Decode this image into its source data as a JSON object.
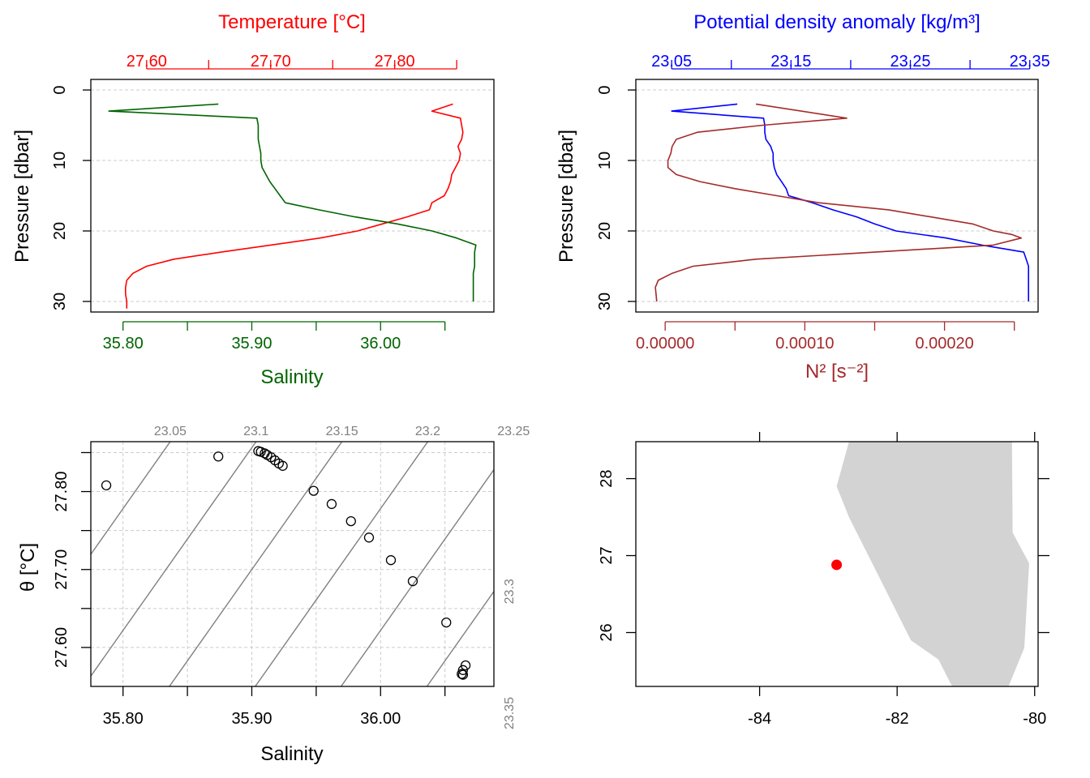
{
  "chart_data": [
    {
      "type": "line",
      "panel": "top-left",
      "title": "",
      "ylabel": "Pressure [dbar]",
      "yticks": [
        "0",
        "10",
        "20",
        "30"
      ],
      "ylim": [
        31.5,
        -1.5
      ],
      "top_axis": {
        "label": "Temperature [°C]",
        "ticks": [
          "27.60",
          "27.70",
          "27.80"
        ],
        "tick_values": [
          27.6,
          27.65,
          27.7,
          27.75,
          27.8,
          27.85
        ],
        "lim": [
          27.555,
          27.88
        ],
        "color": "#ff0000"
      },
      "bottom_axis": {
        "label": "Salinity",
        "ticks": [
          "35.80",
          "35.90",
          "36.00"
        ],
        "tick_values": [
          35.8,
          35.85,
          35.9,
          35.95,
          36.0,
          36.05
        ],
        "lim": [
          35.775,
          36.088
        ],
        "color": "#006400"
      },
      "series": [
        {
          "color": "#ff0000",
          "x": [
            27.847,
            27.83,
            27.853,
            27.854,
            27.855,
            27.854,
            27.851,
            27.853,
            27.852,
            27.849,
            27.846,
            27.845,
            27.843,
            27.84,
            27.83,
            27.828,
            27.81,
            27.79,
            27.77,
            27.74,
            27.7,
            27.66,
            27.622,
            27.6,
            27.589,
            27.584,
            27.583,
            27.583,
            27.584,
            27.584
          ],
          "y": [
            2,
            3,
            4,
            5,
            6,
            7,
            8,
            9,
            10,
            11,
            12,
            13,
            14,
            15,
            16,
            17,
            18,
            19,
            20,
            21,
            22,
            23,
            24,
            25,
            26,
            27,
            28,
            29,
            30,
            31
          ]
        },
        {
          "color": "#006400",
          "x": [
            35.874,
            35.789,
            35.904,
            35.905,
            35.905,
            35.905,
            35.906,
            35.907,
            35.907,
            35.908,
            35.911,
            35.914,
            35.918,
            35.922,
            35.926,
            35.952,
            35.98,
            36.013,
            36.04,
            36.059,
            36.074,
            36.073,
            36.073,
            36.073,
            36.072,
            36.072,
            36.072
          ],
          "y": [
            2,
            3,
            4,
            5,
            6,
            7,
            8,
            9,
            10,
            11,
            12,
            13,
            14,
            15,
            16,
            17,
            18,
            19,
            20,
            21,
            22,
            23,
            24,
            25,
            26,
            27,
            30
          ]
        }
      ]
    },
    {
      "type": "line",
      "panel": "top-right",
      "title": "",
      "ylabel": "Pressure [dbar]",
      "yticks": [
        "0",
        "10",
        "20",
        "30"
      ],
      "ylim": [
        31.5,
        -1.5
      ],
      "top_axis": {
        "label": "Potential density anomaly [kg/m³]",
        "ticks": [
          "23.05",
          "23.15",
          "23.25",
          "23.35"
        ],
        "tick_values": [
          23.05,
          23.1,
          23.15,
          23.2,
          23.25,
          23.3,
          23.35
        ],
        "lim": [
          23.02,
          23.357
        ],
        "color": "#0000ff"
      },
      "bottom_axis": {
        "label": "N² [s⁻²]",
        "ticks": [
          "0.00000",
          "0.00010",
          "0.00020"
        ],
        "tick_values": [
          0,
          5e-05,
          0.0001,
          0.00015,
          0.0002,
          0.00025
        ],
        "lim": [
          -2.1e-05,
          0.000267
        ],
        "color": "#a52a2a"
      },
      "series": [
        {
          "color": "#0000ff",
          "x": [
            23.105,
            23.05,
            23.127,
            23.128,
            23.128,
            23.129,
            23.133,
            23.135,
            23.135,
            23.136,
            23.138,
            23.142,
            23.146,
            23.148,
            23.168,
            23.185,
            23.205,
            23.22,
            23.238,
            23.28,
            23.31,
            23.345,
            23.347,
            23.349,
            23.349,
            23.349,
            23.349
          ],
          "y": [
            2,
            3,
            4,
            5,
            6,
            7,
            8,
            9,
            10,
            11,
            12,
            13,
            14,
            15,
            16,
            17,
            18,
            19,
            20,
            21,
            22,
            23,
            24,
            25,
            26,
            27,
            30
          ]
        },
        {
          "color": "#a52a2a",
          "x": [
            6.5e-05,
            0.00013,
            7e-05,
            2.3e-05,
            8e-06,
            5e-06,
            4e-06,
            2e-06,
            2e-06,
            8e-06,
            2.5e-05,
            5e-05,
            8e-05,
            0.00011,
            0.00016,
            0.00019,
            0.00022,
            0.000235,
            0.000248,
            0.000255,
            0.000235,
            0.00015,
            6.5e-05,
            2e-05,
            5e-06,
            -5e-06,
            -7e-06,
            -6e-06
          ],
          "y": [
            2,
            4,
            5,
            6,
            7,
            8,
            9,
            10,
            11,
            12,
            13,
            14,
            15,
            16,
            17,
            18,
            19,
            20,
            20.5,
            21,
            22,
            23,
            24,
            25,
            26,
            27,
            28,
            30
          ]
        }
      ]
    },
    {
      "type": "scatter",
      "panel": "bottom-left",
      "title": "",
      "xlabel": "Salinity",
      "ylabel": "θ [°C]",
      "xticks": [
        "35.80",
        "35.90",
        "36.00"
      ],
      "yticks": [
        "27.60",
        "27.70",
        "27.80"
      ],
      "xlim": [
        35.775,
        36.088
      ],
      "ylim": [
        27.55,
        27.864
      ],
      "grid": true,
      "isopycnal_labels_top": [
        "23.05",
        "23.1",
        "23.15",
        "23.2",
        "23.25"
      ],
      "isopycnal_labels_right": [
        "23.3",
        "23.35"
      ],
      "point_color": "#000000",
      "contour_color": "#808080",
      "points": [
        {
          "x": 35.787,
          "y": 27.808
        },
        {
          "x": 35.874,
          "y": 27.845
        },
        {
          "x": 35.905,
          "y": 27.852
        },
        {
          "x": 35.907,
          "y": 27.851
        },
        {
          "x": 35.91,
          "y": 27.849
        },
        {
          "x": 35.912,
          "y": 27.847
        },
        {
          "x": 35.915,
          "y": 27.844
        },
        {
          "x": 35.918,
          "y": 27.84
        },
        {
          "x": 35.921,
          "y": 27.836
        },
        {
          "x": 35.924,
          "y": 27.833
        },
        {
          "x": 35.948,
          "y": 27.801
        },
        {
          "x": 35.962,
          "y": 27.784
        },
        {
          "x": 35.977,
          "y": 27.762
        },
        {
          "x": 35.991,
          "y": 27.741
        },
        {
          "x": 36.008,
          "y": 27.712
        },
        {
          "x": 36.025,
          "y": 27.685
        },
        {
          "x": 36.051,
          "y": 27.632
        },
        {
          "x": 36.066,
          "y": 27.577
        },
        {
          "x": 36.064,
          "y": 27.571
        },
        {
          "x": 36.063,
          "y": 27.566
        },
        {
          "x": 36.064,
          "y": 27.565
        }
      ]
    },
    {
      "type": "scatter",
      "panel": "bottom-right",
      "title": "",
      "xticks": [
        "-84",
        "-82",
        "-80"
      ],
      "yticks": [
        "26",
        "27",
        "28"
      ],
      "xlim": [
        -85.8,
        -79.95
      ],
      "ylim": [
        25.3,
        28.48
      ],
      "land_color": "#d3d3d3",
      "station_color": "#ff0000",
      "station": {
        "lon": -82.88,
        "lat": 26.88
      },
      "coastline": [
        [
          -82.7,
          28.48
        ],
        [
          -82.88,
          27.9
        ],
        [
          -82.7,
          27.5
        ],
        [
          -82.25,
          26.7
        ],
        [
          -81.8,
          25.9
        ],
        [
          -81.4,
          25.65
        ],
        [
          -81.2,
          25.3
        ],
        [
          -80.38,
          25.3
        ],
        [
          -80.15,
          25.8
        ],
        [
          -80.08,
          26.9
        ],
        [
          -80.32,
          27.3
        ],
        [
          -80.33,
          28.48
        ]
      ]
    }
  ]
}
